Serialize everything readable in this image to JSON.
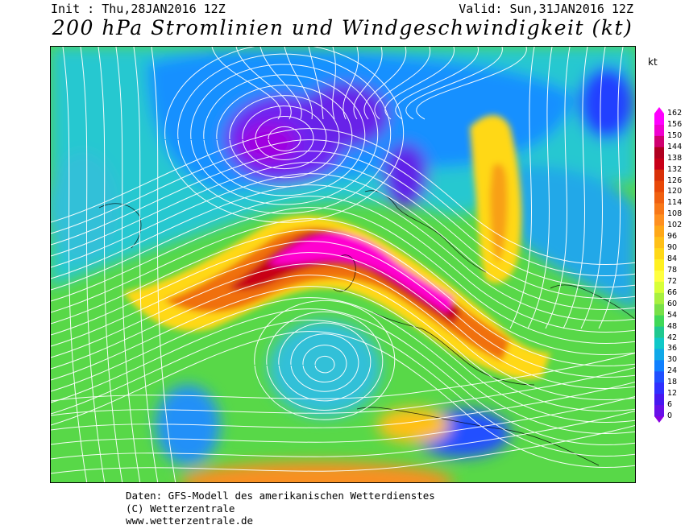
{
  "header": {
    "init": "Init : Thu,28JAN2016 12Z",
    "valid": "Valid: Sun,31JAN2016 12Z",
    "title": "200 hPa Stromlinien und Windgeschwindigkeit (kt)"
  },
  "legend": {
    "unit": "kt",
    "values": [
      "162",
      "156",
      "150",
      "144",
      "138",
      "132",
      "126",
      "120",
      "114",
      "108",
      "102",
      "96",
      "90",
      "84",
      "78",
      "72",
      "66",
      "60",
      "54",
      "48",
      "42",
      "36",
      "30",
      "24",
      "18",
      "12",
      "6",
      "0"
    ],
    "colors": [
      "#ff00ff",
      "#f000d0",
      "#d00070",
      "#b00020",
      "#c80018",
      "#d83008",
      "#e84808",
      "#f06010",
      "#f87818",
      "#ff9020",
      "#ffa818",
      "#ffc018",
      "#ffd818",
      "#fff020",
      "#ffff40",
      "#d8ff38",
      "#a8f040",
      "#78e048",
      "#40d858",
      "#20c890",
      "#10c8c8",
      "#10a8e8",
      "#1080ff",
      "#2050ff",
      "#3030ff",
      "#4818f0",
      "#6810e8",
      "#8800e0"
    ]
  },
  "footer": {
    "line1": "Daten: GFS-Modell des amerikanischen Wetterdienstes",
    "line2": "(C) Wetterzentrale",
    "line3": "www.wetterzentrale.de"
  }
}
